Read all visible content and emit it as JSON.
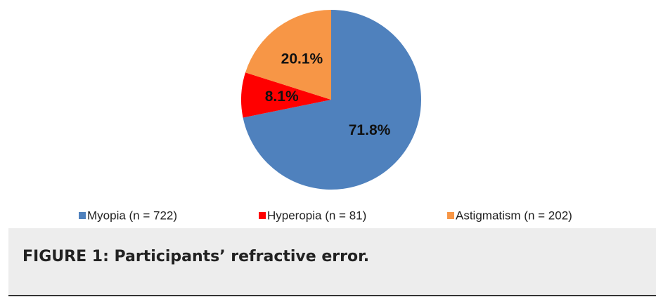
{
  "chart_data": {
    "type": "pie",
    "categories": [
      "Myopia (n = 722)",
      "Hyperopia (n = 81)",
      "Astigmatism (n = 202)"
    ],
    "values": [
      71.8,
      8.1,
      20.1
    ],
    "value_labels": [
      "71.8%",
      "8.1%",
      "20.1%"
    ],
    "colors": [
      "#4f81bd",
      "#ff0000",
      "#f79646"
    ],
    "legend": "bottom"
  },
  "caption": "FIGURE 1: Participants’ refractive error."
}
